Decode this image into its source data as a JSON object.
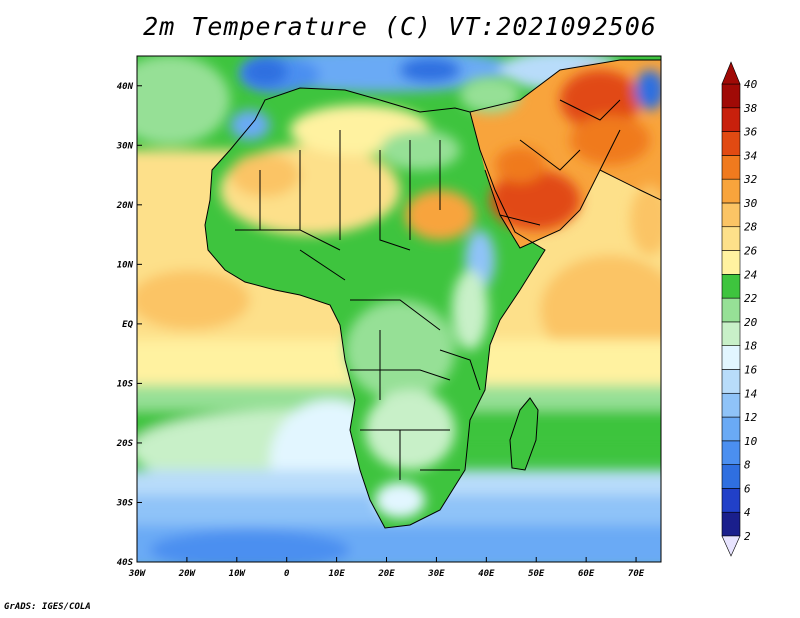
{
  "title": "2m Temperature (C) VT:2021092506",
  "credit": "GrADS: IGES/COLA",
  "map": {
    "lon_ticks": [
      {
        "lon": -30,
        "label": "30W"
      },
      {
        "lon": -20,
        "label": "20W"
      },
      {
        "lon": -10,
        "label": "10W"
      },
      {
        "lon": 0,
        "label": "0"
      },
      {
        "lon": 10,
        "label": "10E"
      },
      {
        "lon": 20,
        "label": "20E"
      },
      {
        "lon": 30,
        "label": "30E"
      },
      {
        "lon": 40,
        "label": "40E"
      },
      {
        "lon": 50,
        "label": "50E"
      },
      {
        "lon": 60,
        "label": "60E"
      },
      {
        "lon": 70,
        "label": "70E"
      }
    ],
    "lat_ticks": [
      {
        "lat": 40,
        "label": "40N"
      },
      {
        "lat": 30,
        "label": "30N"
      },
      {
        "lat": 20,
        "label": "20N"
      },
      {
        "lat": 10,
        "label": "10N"
      },
      {
        "lat": 0,
        "label": "EQ"
      },
      {
        "lat": -10,
        "label": "10S"
      },
      {
        "lat": -20,
        "label": "20S"
      },
      {
        "lat": -30,
        "label": "30S"
      },
      {
        "lat": -40,
        "label": "40S"
      }
    ],
    "lon_range": [
      -30,
      75
    ],
    "lat_range": [
      -40,
      45
    ]
  },
  "colorbar": {
    "labels": [
      "2",
      "4",
      "6",
      "8",
      "10",
      "12",
      "14",
      "16",
      "18",
      "20",
      "22",
      "24",
      "26",
      "28",
      "30",
      "32",
      "34",
      "36",
      "38",
      "40"
    ],
    "colors": [
      "#1a1f8c",
      "#2140c8",
      "#2f6fe0",
      "#4b8ff0",
      "#6aaaf5",
      "#8fc3f8",
      "#b8dcfa",
      "#e2f6ff",
      "#c8f0c8",
      "#96e096",
      "#3ec43e",
      "#fff2a0",
      "#fde08a",
      "#fbc465",
      "#f8a43c",
      "#f07a1e",
      "#e14a12",
      "#c8200c",
      "#a00a06"
    ],
    "under_color": "#e8e4ff",
    "over_color": "#a00a06"
  }
}
